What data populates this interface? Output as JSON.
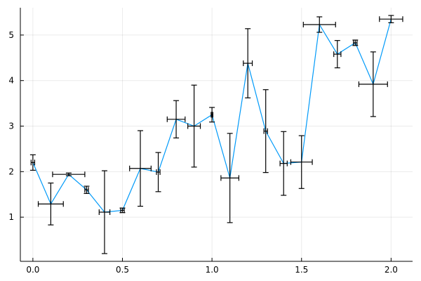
{
  "chart_data": {
    "type": "line",
    "title": "",
    "xlabel": "",
    "ylabel": "",
    "xlim": [
      -0.07,
      2.12
    ],
    "ylim": [
      0.03,
      5.6
    ],
    "xticks": [
      0.0,
      0.5,
      1.0,
      1.5,
      2.0
    ],
    "xtick_labels": [
      "0.0",
      "0.5",
      "1.0",
      "1.5",
      "2.0"
    ],
    "yticks": [
      1,
      2,
      3,
      4,
      5
    ],
    "ytick_labels": [
      "1",
      "2",
      "3",
      "4",
      "5"
    ],
    "grid": true,
    "legend": "none",
    "colors": {
      "series": "#009AF9",
      "errorbar": "#000000",
      "axis": "#000000"
    },
    "series": [
      {
        "x": [
          0.0,
          0.1,
          0.2,
          0.3,
          0.4,
          0.5,
          0.6,
          0.7,
          0.8,
          0.9,
          1.0,
          1.1,
          1.2,
          1.3,
          1.4,
          1.5,
          1.6,
          1.7,
          1.8,
          1.9,
          2.0
        ],
        "y": [
          2.2,
          1.29,
          1.94,
          1.6,
          1.11,
          1.15,
          2.07,
          1.99,
          3.15,
          3.0,
          3.25,
          1.86,
          4.38,
          2.89,
          2.18,
          2.21,
          5.23,
          4.58,
          4.83,
          3.92,
          5.35
        ],
        "x_err": [
          0.01,
          0.07,
          0.09,
          0.01,
          0.03,
          0.01,
          0.06,
          0.01,
          0.05,
          0.035,
          0.005,
          0.05,
          0.025,
          0.01,
          0.02,
          0.06,
          0.09,
          0.02,
          0.01,
          0.08,
          0.065
        ],
        "y_err": [
          0.17,
          0.46,
          0.03,
          0.08,
          0.91,
          0.05,
          0.83,
          0.43,
          0.41,
          0.9,
          0.16,
          0.98,
          0.76,
          0.91,
          0.7,
          0.58,
          0.17,
          0.3,
          0.06,
          0.71,
          0.08
        ]
      }
    ]
  }
}
